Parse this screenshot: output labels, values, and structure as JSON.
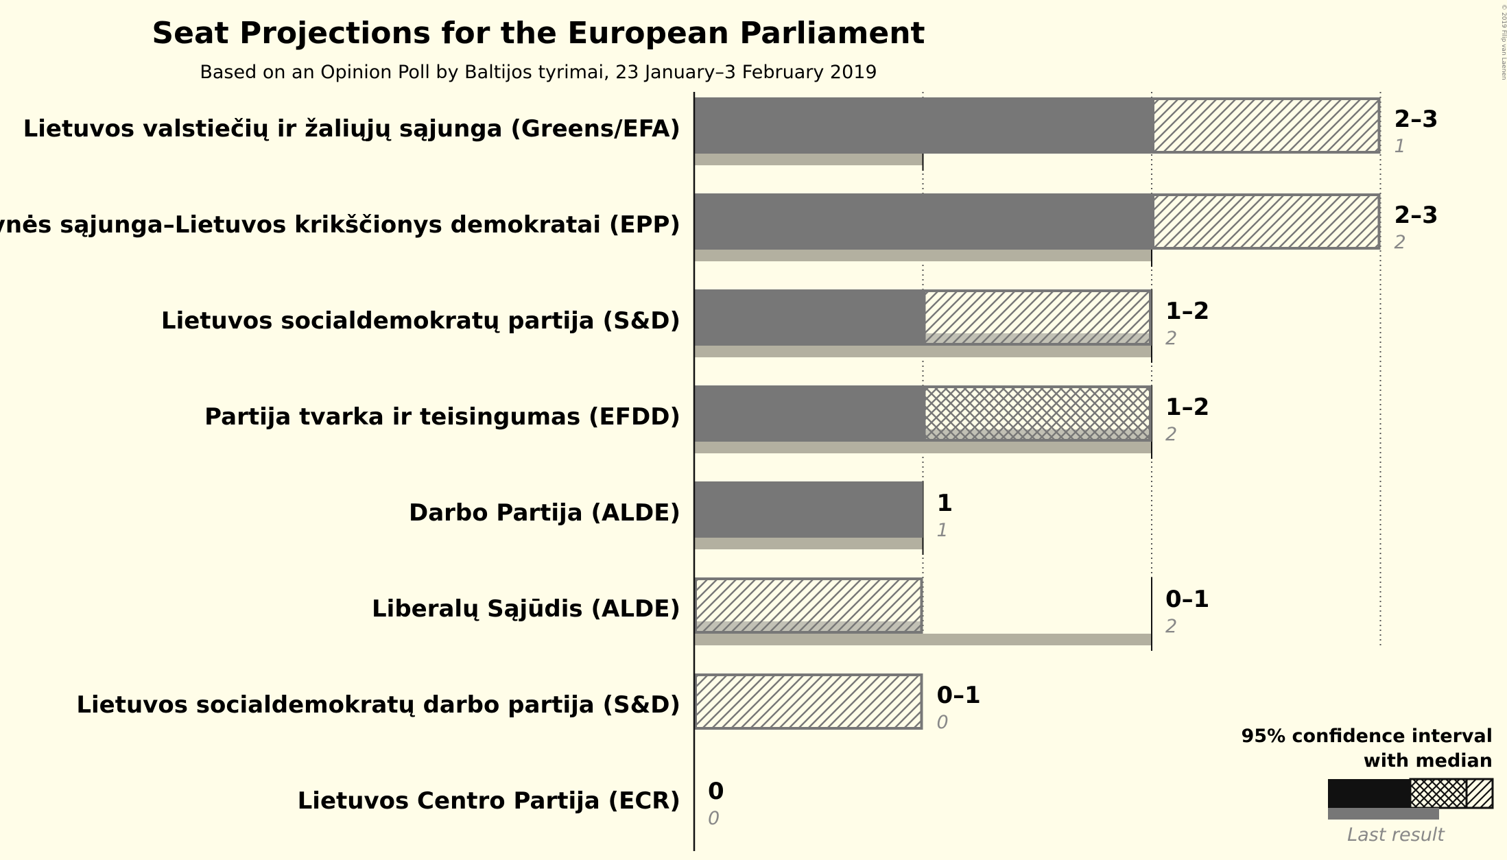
{
  "chart_data": {
    "type": "bar",
    "title": "Seat Projections for the European Parliament",
    "subtitle": "Based on an Opinion Poll by Baltijos tyrimai, 23 January–3 February 2019",
    "copyright": "© 2019 Filip van Laenen",
    "xlim": [
      0,
      3
    ],
    "parties": [
      {
        "name": "Lietuvos valstiečių ir žaliųjų sąjunga (Greens/EFA)",
        "low": 2,
        "median": 2,
        "high": 3,
        "range_label": "2–3",
        "last": 1,
        "last_label": "1"
      },
      {
        "name": "Tėvynės sąjunga–Lietuvos krikščionys demokratai (EPP)",
        "low": 2,
        "median": 2,
        "high": 3,
        "range_label": "2–3",
        "last": 2,
        "last_label": "2"
      },
      {
        "name": "Lietuvos socialdemokratų partija (S&D)",
        "low": 1,
        "median": 1,
        "high": 2,
        "range_label": "1–2",
        "last": 2,
        "last_label": "2"
      },
      {
        "name": "Partija tvarka ir teisingumas (EFDD)",
        "low": 1,
        "median": 2,
        "high": 2,
        "range_label": "1–2",
        "last": 2,
        "last_label": "2"
      },
      {
        "name": "Darbo Partija (ALDE)",
        "low": 1,
        "median": 1,
        "high": 1,
        "range_label": "1",
        "last": 1,
        "last_label": "1"
      },
      {
        "name": "Liberalų Sąjūdis (ALDE)",
        "low": 0,
        "median": 0,
        "high": 1,
        "range_label": "0–1",
        "last": 2,
        "last_label": "2"
      },
      {
        "name": "Lietuvos socialdemokratų darbo partija (S&D)",
        "low": 0,
        "median": 0,
        "high": 1,
        "range_label": "0–1",
        "last": 0,
        "last_label": "0"
      },
      {
        "name": "Lietuvos Centro Partija (ECR)",
        "low": 0,
        "median": 0,
        "high": 0,
        "range_label": "0",
        "last": 0,
        "last_label": "0"
      }
    ],
    "legend": {
      "line1": "95% confidence interval",
      "line2": "with median",
      "last_result": "Last result"
    },
    "colors": {
      "background": "#fffde8",
      "bar": "#777777",
      "last": "#b3b0a0",
      "legend_bar": "#111111"
    }
  }
}
